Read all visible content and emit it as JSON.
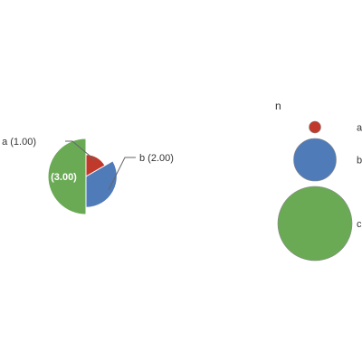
{
  "chart_data": {
    "type": "pie",
    "categories": [
      "a",
      "b",
      "c"
    ],
    "values": [
      1,
      2,
      3
    ],
    "colors": [
      "#c0392b",
      "#4f7bb8",
      "#6aaa55"
    ],
    "slice_labels": [
      "a (1.00)",
      "b (2.00)",
      "c (3.00)"
    ],
    "label_placement": [
      "outside",
      "outside",
      "inside"
    ],
    "radius_scale": "proportional to sqrt(value)",
    "start_angle_deg": 0,
    "legend": {
      "title": "n",
      "position": "right",
      "symbol": "circle sized by value",
      "items": [
        "a",
        "b",
        "c"
      ]
    }
  }
}
